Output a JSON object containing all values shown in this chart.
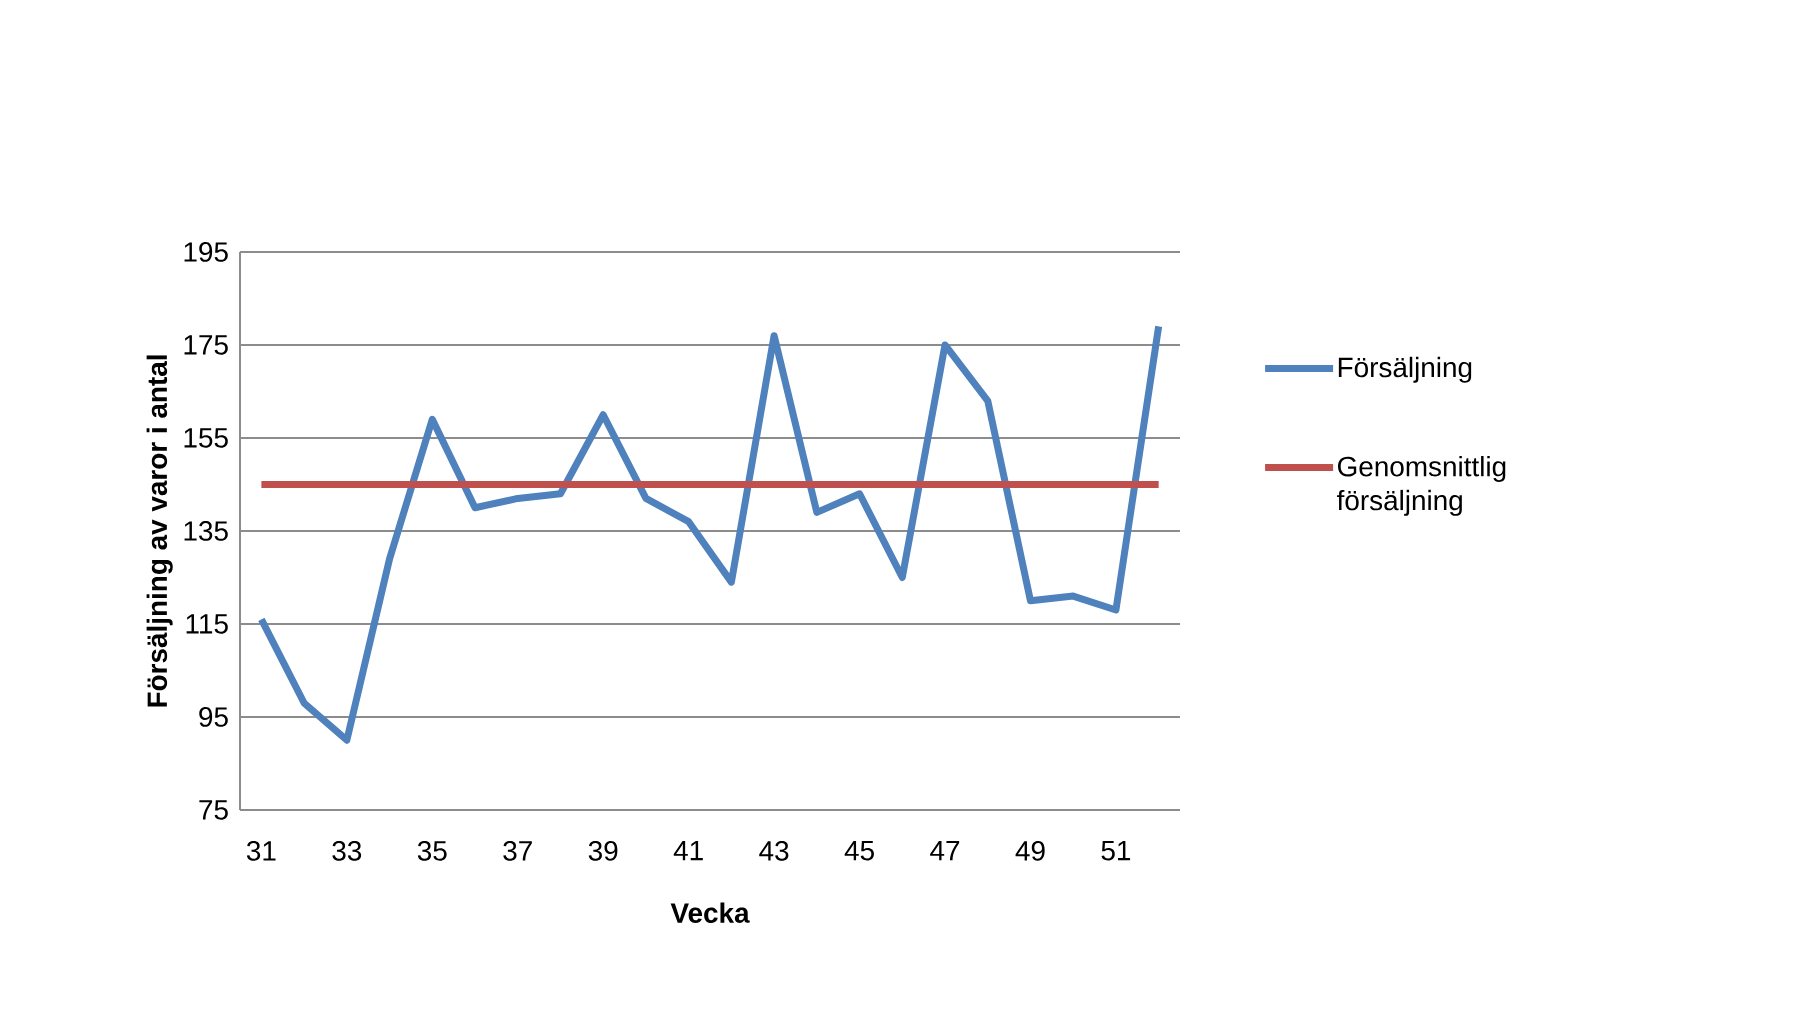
{
  "chart_data": {
    "type": "line",
    "xlabel": "Vecka",
    "ylabel": "Försäljning av varor i antal",
    "categories": [
      "31",
      null,
      "33",
      null,
      "35",
      null,
      "37",
      null,
      "39",
      null,
      "41",
      null,
      "43",
      null,
      "45",
      null,
      "47",
      null,
      "49",
      null,
      "51",
      null
    ],
    "series": [
      {
        "name": "Försäljning",
        "color": "#4f81bd",
        "values": [
          116,
          98,
          90,
          129,
          159,
          140,
          142,
          143,
          160,
          142,
          137,
          124,
          177,
          139,
          143,
          125,
          175,
          163,
          120,
          121,
          118,
          179
        ]
      },
      {
        "name": "Genomsnittlig försäljning",
        "color": "#c0504d",
        "values": [
          145,
          145,
          145,
          145,
          145,
          145,
          145,
          145,
          145,
          145,
          145,
          145,
          145,
          145,
          145,
          145,
          145,
          145,
          145,
          145,
          145,
          145
        ]
      }
    ],
    "ylim": [
      75,
      195
    ],
    "yticks": [
      75,
      95,
      115,
      135,
      155,
      175,
      195
    ],
    "grid": "y",
    "legend": "right",
    "marker": "none",
    "line_style": "solid"
  }
}
